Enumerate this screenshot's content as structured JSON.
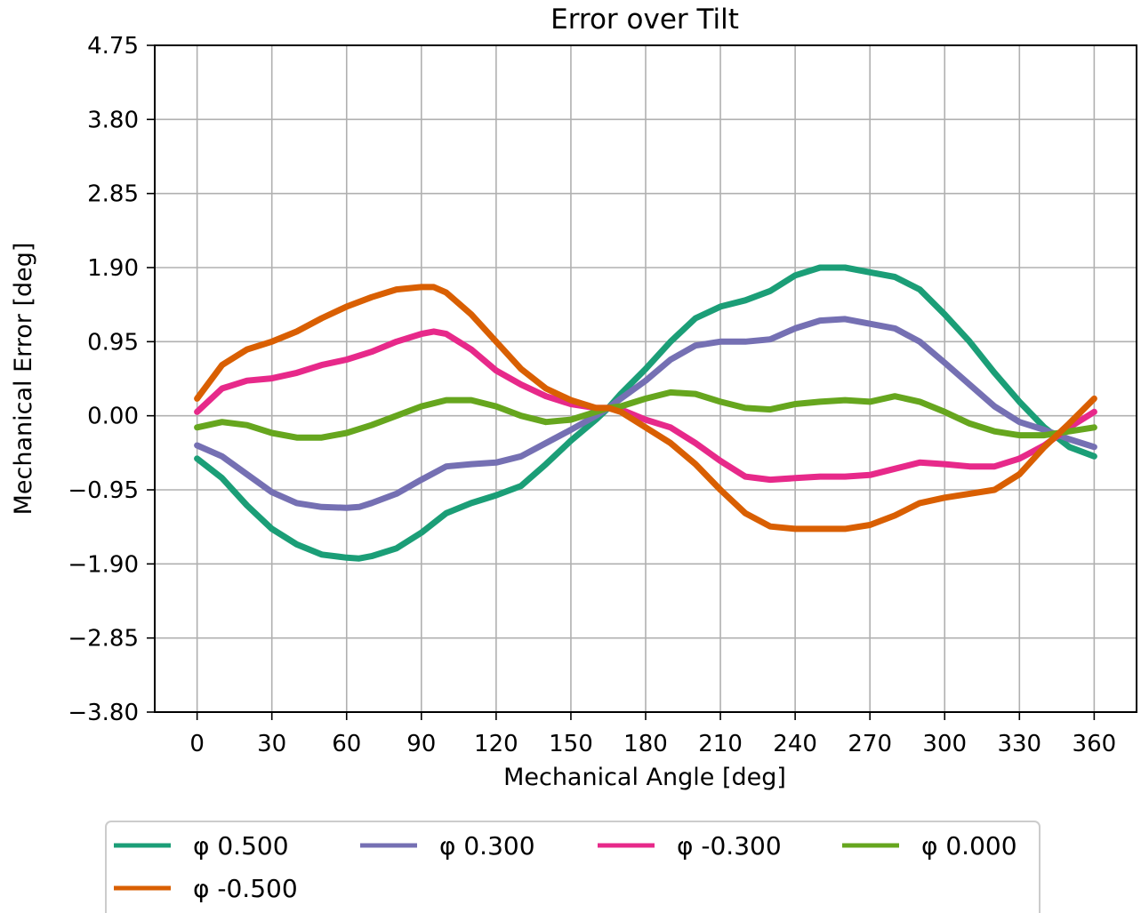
{
  "chart_data": {
    "type": "line",
    "title": "Error over Tilt",
    "xlabel": "Mechanical Angle [deg]",
    "ylabel": "Mechanical Error [deg]",
    "xlim": [
      -17,
      377
    ],
    "ylim": [
      -3.8,
      4.75
    ],
    "xticks": [
      0,
      30,
      60,
      90,
      120,
      150,
      180,
      210,
      240,
      270,
      300,
      330,
      360
    ],
    "yticks": [
      -3.8,
      -2.85,
      -1.9,
      -0.95,
      0.0,
      0.95,
      1.9,
      2.85,
      3.8,
      4.75
    ],
    "xtick_labels": [
      "0",
      "30",
      "60",
      "90",
      "120",
      "150",
      "180",
      "210",
      "240",
      "270",
      "300",
      "330",
      "360"
    ],
    "ytick_labels": [
      "−3.80",
      "−2.85",
      "−1.90",
      "−0.95",
      "0.00",
      "0.95",
      "1.90",
      "2.85",
      "3.80",
      "4.75"
    ],
    "grid": true,
    "legend_position": "below",
    "series": [
      {
        "name": "φ 0.500",
        "color": "#1b9e77",
        "x": [
          0,
          10,
          20,
          30,
          40,
          50,
          60,
          65,
          70,
          80,
          90,
          100,
          110,
          120,
          130,
          140,
          150,
          160,
          165,
          170,
          180,
          190,
          200,
          210,
          220,
          230,
          240,
          250,
          260,
          270,
          280,
          290,
          300,
          310,
          320,
          330,
          340,
          350,
          360
        ],
        "y": [
          -0.55,
          -0.8,
          -1.15,
          -1.45,
          -1.65,
          -1.78,
          -1.82,
          -1.83,
          -1.8,
          -1.7,
          -1.5,
          -1.25,
          -1.12,
          -1.02,
          -0.9,
          -0.62,
          -0.32,
          -0.05,
          0.1,
          0.28,
          0.6,
          0.95,
          1.25,
          1.4,
          1.48,
          1.6,
          1.8,
          1.9,
          1.9,
          1.84,
          1.78,
          1.62,
          1.3,
          0.95,
          0.55,
          0.18,
          -0.15,
          -0.4,
          -0.52
        ]
      },
      {
        "name": "φ 0.300",
        "color": "#7570b3",
        "x": [
          0,
          10,
          20,
          30,
          40,
          50,
          60,
          65,
          70,
          80,
          90,
          100,
          110,
          120,
          130,
          140,
          150,
          160,
          165,
          170,
          180,
          190,
          200,
          210,
          220,
          230,
          240,
          250,
          260,
          270,
          280,
          290,
          300,
          310,
          320,
          330,
          340,
          350,
          360
        ],
        "y": [
          -0.38,
          -0.52,
          -0.75,
          -0.98,
          -1.12,
          -1.17,
          -1.18,
          -1.17,
          -1.12,
          -1.0,
          -0.82,
          -0.65,
          -0.62,
          -0.6,
          -0.52,
          -0.35,
          -0.18,
          0.0,
          0.1,
          0.22,
          0.45,
          0.72,
          0.9,
          0.95,
          0.95,
          0.98,
          1.12,
          1.22,
          1.24,
          1.18,
          1.12,
          0.95,
          0.68,
          0.4,
          0.12,
          -0.08,
          -0.18,
          -0.3,
          -0.4
        ]
      },
      {
        "name": "φ -0.300",
        "color": "#e7298a",
        "x": [
          0,
          10,
          20,
          30,
          40,
          50,
          60,
          70,
          80,
          90,
          95,
          100,
          110,
          120,
          130,
          140,
          150,
          160,
          165,
          170,
          180,
          190,
          200,
          210,
          220,
          230,
          240,
          250,
          260,
          270,
          280,
          290,
          300,
          310,
          320,
          330,
          340,
          350,
          360
        ],
        "y": [
          0.05,
          0.35,
          0.45,
          0.48,
          0.55,
          0.65,
          0.72,
          0.82,
          0.95,
          1.05,
          1.08,
          1.05,
          0.85,
          0.58,
          0.4,
          0.25,
          0.15,
          0.1,
          0.1,
          0.08,
          -0.05,
          -0.15,
          -0.35,
          -0.58,
          -0.78,
          -0.82,
          -0.8,
          -0.78,
          -0.78,
          -0.76,
          -0.68,
          -0.6,
          -0.62,
          -0.65,
          -0.65,
          -0.55,
          -0.38,
          -0.15,
          0.05
        ]
      },
      {
        "name": "φ 0.000",
        "color": "#66a61e",
        "x": [
          0,
          10,
          20,
          30,
          40,
          50,
          60,
          70,
          80,
          90,
          100,
          110,
          120,
          130,
          140,
          150,
          160,
          165,
          170,
          180,
          190,
          200,
          210,
          220,
          230,
          240,
          250,
          260,
          270,
          280,
          290,
          300,
          310,
          320,
          330,
          340,
          350,
          360
        ],
        "y": [
          -0.15,
          -0.08,
          -0.12,
          -0.22,
          -0.28,
          -0.28,
          -0.22,
          -0.12,
          0.0,
          0.12,
          0.2,
          0.2,
          0.12,
          0.0,
          -0.08,
          -0.05,
          0.05,
          0.1,
          0.12,
          0.22,
          0.3,
          0.28,
          0.18,
          0.1,
          0.08,
          0.15,
          0.18,
          0.2,
          0.18,
          0.25,
          0.18,
          0.05,
          -0.1,
          -0.2,
          -0.25,
          -0.25,
          -0.2,
          -0.15
        ]
      },
      {
        "name": "φ -0.500",
        "color": "#d95f02",
        "x": [
          0,
          10,
          20,
          30,
          40,
          50,
          60,
          70,
          80,
          90,
          95,
          100,
          110,
          120,
          130,
          140,
          150,
          160,
          165,
          170,
          180,
          190,
          200,
          210,
          220,
          230,
          240,
          250,
          260,
          270,
          280,
          290,
          300,
          310,
          320,
          330,
          340,
          350,
          360
        ],
        "y": [
          0.22,
          0.65,
          0.85,
          0.95,
          1.08,
          1.25,
          1.4,
          1.52,
          1.62,
          1.65,
          1.65,
          1.58,
          1.3,
          0.95,
          0.6,
          0.35,
          0.2,
          0.1,
          0.1,
          0.05,
          -0.15,
          -0.35,
          -0.62,
          -0.95,
          -1.25,
          -1.42,
          -1.45,
          -1.45,
          -1.45,
          -1.4,
          -1.28,
          -1.12,
          -1.05,
          -1.0,
          -0.95,
          -0.75,
          -0.4,
          -0.1,
          0.22
        ]
      }
    ]
  }
}
